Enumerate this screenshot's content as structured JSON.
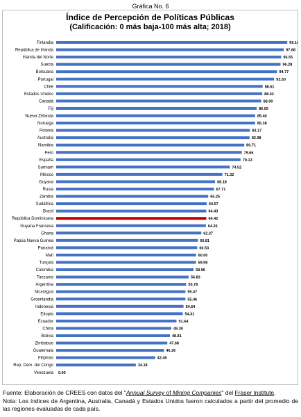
{
  "figure_label": "Gráfica No. 6",
  "chart_data": {
    "type": "bar",
    "orientation": "horizontal",
    "title": "Índice de Percepción de Políticas Públicas",
    "subtitle": "(Calificación: 0 más baja-100 más alta; 2018)",
    "xlim": [
      0,
      100
    ],
    "grid": false,
    "legend": "none",
    "colors": {
      "default": "#4472c4",
      "highlight": "#c00000"
    },
    "highlight_category": "República Dominicana",
    "categories": [
      "Finlandia",
      "República de Irlanda",
      "Irlanda del Norte",
      "Suecia",
      "Botsuana",
      "Portugal",
      "Chile",
      "Estados Unidos",
      "Canadá",
      "Fiji",
      "Nueva Zelanda",
      "Noruega",
      "Polonia",
      "Australia",
      "Namibia",
      "Perú",
      "España",
      "Surinam",
      "México",
      "Guyana",
      "Rusia",
      "Zambia",
      "Sudáfrica",
      "Brasil",
      "República Dominicana",
      "Guyana Francesa",
      "Ghana",
      "Papúa Nueva Guinea",
      "Panamá",
      "Malí",
      "Turquía",
      "Colombia",
      "Tanzania",
      "Argentina",
      "Nicaragua",
      "Groenlandia",
      "Indonesia",
      "Etiopía",
      "Ecuador",
      "China",
      "Bolivia",
      "Zimbabue",
      "Guatemala",
      "Filipinas",
      "Rep. Dem. del Congo",
      "Venezuela"
    ],
    "values": [
      99.16,
      97.68,
      96.55,
      96.28,
      94.77,
      93.5,
      88.61,
      88.42,
      88.0,
      86.05,
      85.4,
      85.38,
      83.17,
      82.98,
      80.71,
      79.66,
      79.13,
      74.52,
      71.32,
      68.18,
      67.71,
      65.25,
      64.57,
      64.43,
      64.42,
      64.26,
      62.27,
      60.81,
      60.53,
      60.0,
      59.98,
      58.96,
      56.83,
      55.78,
      55.47,
      55.46,
      54.64,
      54.31,
      51.64,
      49.39,
      48.81,
      47.68,
      46.26,
      42.46,
      34.18,
      0.0
    ],
    "value_labels": [
      "99.16",
      "97.68",
      "96.55",
      "96.28",
      "94.77",
      "93.50",
      "88.61",
      "88.42",
      "88.00",
      "86.05",
      "85.40",
      "85.38",
      "83.17",
      "82.98",
      "80.71",
      "79.66",
      "79.13",
      "74.52",
      "71.32",
      "68.18",
      "67.71",
      "65.25",
      "64.57",
      "64.43",
      "64.42",
      "64.26",
      "62.27",
      "60.81",
      "60.53",
      "60.00",
      "59.98",
      "58.96",
      "56.83",
      "55.78",
      "55.47",
      "55.46",
      "54.64",
      "54.31",
      "51.64",
      "49.39",
      "48.81",
      "47.68",
      "46.26",
      "42.46",
      "34.18",
      "0.00"
    ]
  },
  "footnote": {
    "source_prefix": "Fuente: Elaboración de CREES con datos del \"",
    "source_survey_1": "Annual Survey",
    "source_of": " of ",
    "source_survey_2": "Mining Companies",
    "source_middle": "\" del ",
    "source_institute": "Fraser Institute",
    "source_end": ".",
    "note": "Nota: Los índices de Argentina, Australia, Canadá y Estados Unidos fueron calculados a partir del promedio de las regiones evaluadas de cada país."
  }
}
